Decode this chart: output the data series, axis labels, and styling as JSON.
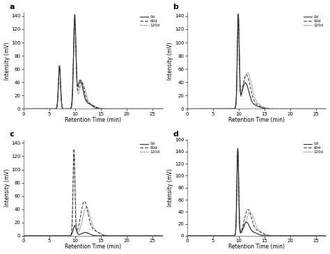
{
  "title_a": "a",
  "title_b": "b",
  "title_c": "c",
  "title_d": "d",
  "xlabel": "Retention Time (min)",
  "ylabel": "Intensity (mV)",
  "xlim": [
    0,
    27
  ],
  "xticks": [
    0,
    5,
    10,
    15,
    20,
    25
  ],
  "legend_labels": [
    "0d",
    "60d",
    "120d"
  ],
  "line_styles_a": [
    "-",
    "--",
    ":"
  ],
  "line_styles_b": [
    "-",
    "--",
    ":"
  ],
  "line_styles_c": [
    "-",
    "--",
    ":"
  ],
  "line_styles_d": [
    "-",
    "--",
    ":"
  ],
  "line_color": "#333333",
  "subplot_a": {
    "ylim": [
      0,
      145
    ],
    "yticks": [
      0,
      20,
      40,
      60,
      80,
      100,
      120,
      140
    ]
  },
  "subplot_b": {
    "ylim": [
      0,
      145
    ],
    "yticks": [
      0,
      20,
      40,
      60,
      80,
      100,
      120,
      140
    ]
  },
  "subplot_c": {
    "ylim": [
      0,
      145
    ],
    "yticks": [
      0,
      20,
      40,
      60,
      80,
      100,
      120,
      140
    ]
  },
  "subplot_d": {
    "ylim": [
      0,
      160
    ],
    "yticks": [
      0,
      20,
      40,
      60,
      80,
      100,
      120,
      140,
      160
    ]
  }
}
